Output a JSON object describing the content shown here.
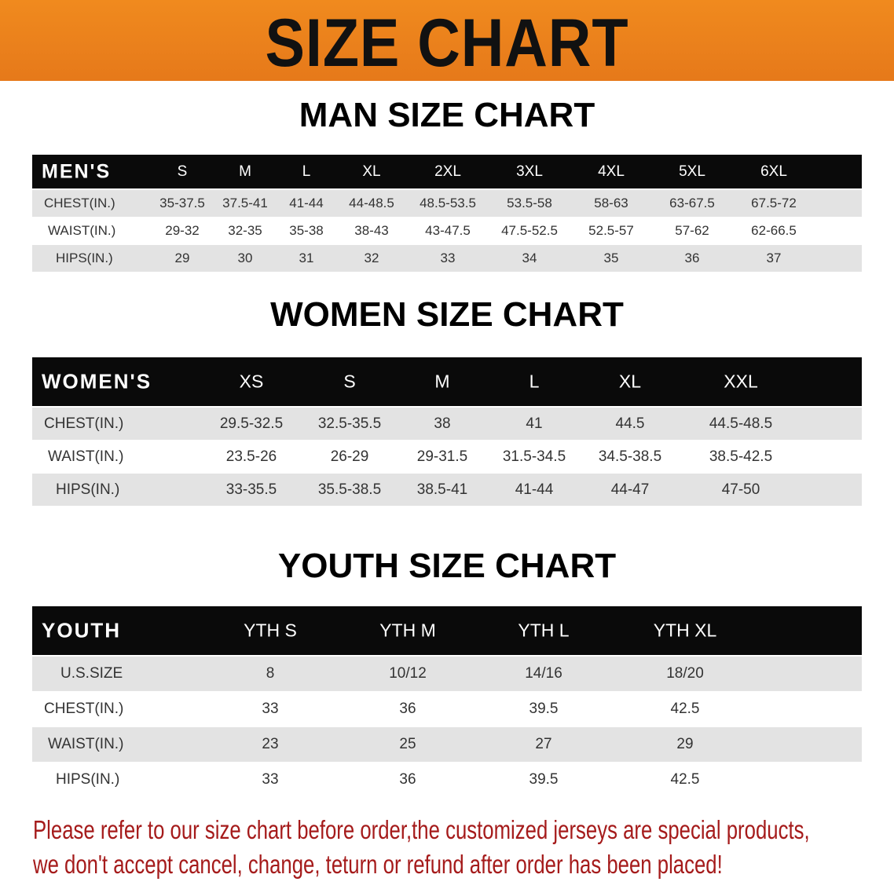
{
  "banner": {
    "title": "SIZE CHART",
    "color": "#ec8320"
  },
  "men": {
    "title": "MAN SIZE CHART",
    "header_label": "MEN'S",
    "sizes": [
      "S",
      "M",
      "L",
      "XL",
      "2XL",
      "3XL",
      "4XL",
      "5XL",
      "6XL"
    ],
    "rows": [
      {
        "label": "CHEST(IN.)",
        "values": [
          "35-37.5",
          "37.5-41",
          "41-44",
          "44-48.5",
          "48.5-53.5",
          "53.5-58",
          "58-63",
          "63-67.5",
          "67.5-72"
        ]
      },
      {
        "label": "WAIST(IN.)",
        "values": [
          "29-32",
          "32-35",
          "35-38",
          "38-43",
          "43-47.5",
          "47.5-52.5",
          "52.5-57",
          "57-62",
          "62-66.5"
        ]
      },
      {
        "label": "HIPS(IN.)",
        "values": [
          "29",
          "30",
          "31",
          "32",
          "33",
          "34",
          "35",
          "36",
          "37"
        ]
      }
    ]
  },
  "women": {
    "title": "WOMEN SIZE CHART",
    "header_label": "WOMEN'S",
    "sizes": [
      "XS",
      "S",
      "M",
      "L",
      "XL",
      "XXL"
    ],
    "rows": [
      {
        "label": "CHEST(IN.)",
        "values": [
          "29.5-32.5",
          "32.5-35.5",
          "38",
          "41",
          "44.5",
          "44.5-48.5"
        ]
      },
      {
        "label": "WAIST(IN.)",
        "values": [
          "23.5-26",
          "26-29",
          "29-31.5",
          "31.5-34.5",
          "34.5-38.5",
          "38.5-42.5"
        ]
      },
      {
        "label": "HIPS(IN.)",
        "values": [
          "33-35.5",
          "35.5-38.5",
          "38.5-41",
          "41-44",
          "44-47",
          "47-50"
        ]
      }
    ]
  },
  "youth": {
    "title": "YOUTH SIZE CHART",
    "header_label": "YOUTH",
    "sizes": [
      "YTH S",
      "YTH M",
      "YTH L",
      "YTH XL"
    ],
    "rows": [
      {
        "label": "U.S.SIZE",
        "values": [
          "8",
          "10/12",
          "14/16",
          "18/20"
        ]
      },
      {
        "label": "CHEST(IN.)",
        "values": [
          "33",
          "36",
          "39.5",
          "42.5"
        ]
      },
      {
        "label": "WAIST(IN.)",
        "values": [
          "23",
          "25",
          "27",
          "29"
        ]
      },
      {
        "label": "HIPS(IN.)",
        "values": [
          "33",
          "36",
          "39.5",
          "42.5"
        ]
      }
    ]
  },
  "notice": {
    "line1": "Please refer to our size chart before order,the customized jerseys are special products,",
    "line2": "we don't accept cancel, change, teturn or refund after order has been placed!",
    "color": "#a51b1b"
  }
}
